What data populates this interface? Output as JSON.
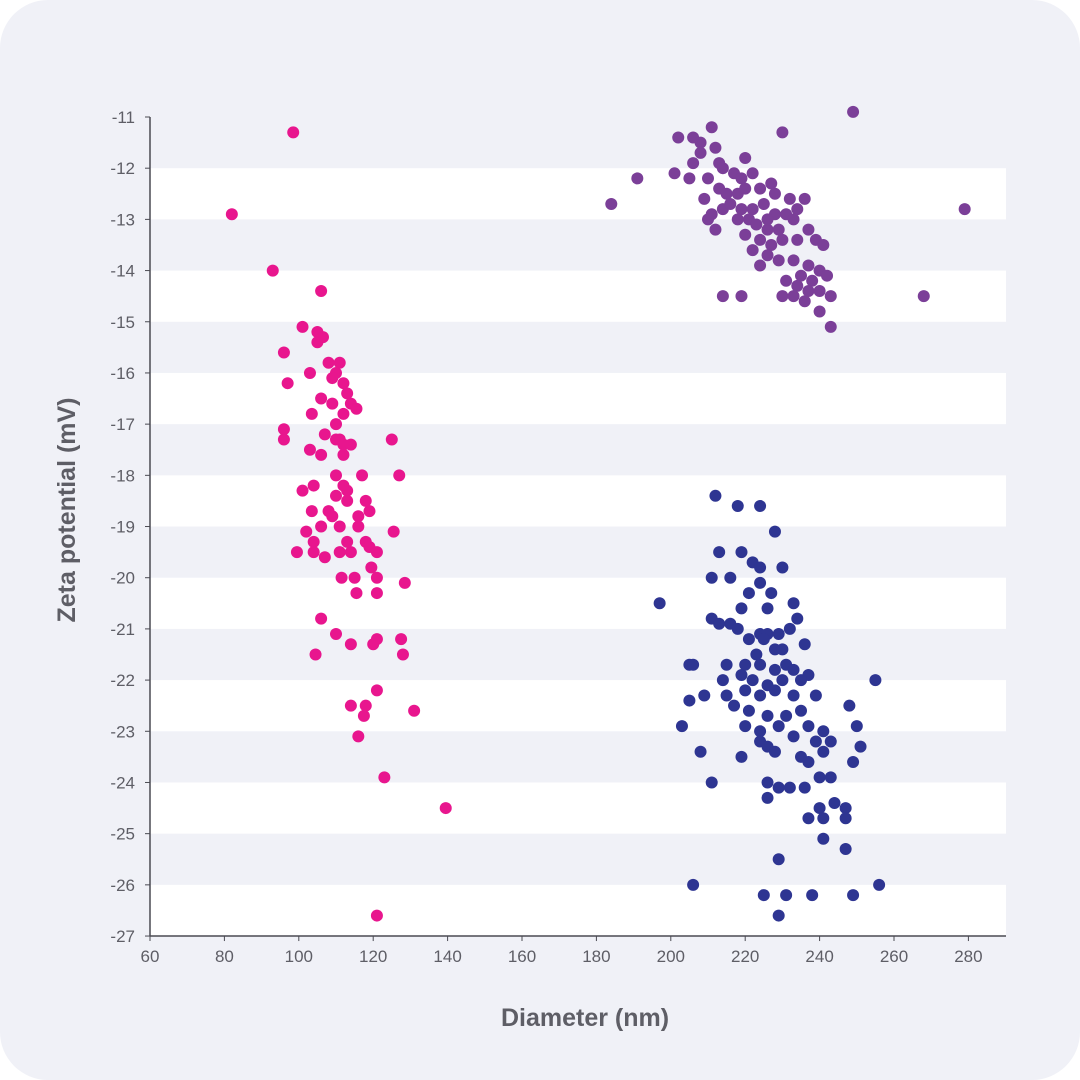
{
  "chart_data": {
    "type": "scatter",
    "title": "",
    "xlabel": "Diameter (nm)",
    "ylabel": "Zeta potential (mV)",
    "xlim": [
      60,
      290
    ],
    "ylim": [
      -27,
      -11
    ],
    "xticks": [
      60,
      80,
      100,
      120,
      140,
      160,
      180,
      200,
      220,
      240,
      260,
      280
    ],
    "yticks": [
      -11,
      -12,
      -13,
      -14,
      -15,
      -16,
      -17,
      -18,
      -19,
      -20,
      -21,
      -22,
      -23,
      -24,
      -25,
      -26,
      -27
    ],
    "grid": "alternating horizontal bands",
    "legend": "none",
    "series": [
      {
        "color": "#e8168e",
        "points": [
          [
            98.5,
            -11.3
          ],
          [
            82,
            -12.9
          ],
          [
            93,
            -14.0
          ],
          [
            106,
            -14.4
          ],
          [
            101,
            -15.1
          ],
          [
            105,
            -15.2
          ],
          [
            105,
            -15.4
          ],
          [
            106.5,
            -15.3
          ],
          [
            96,
            -15.6
          ],
          [
            97,
            -16.2
          ],
          [
            103,
            -16.0
          ],
          [
            108,
            -15.8
          ],
          [
            111,
            -15.8
          ],
          [
            110,
            -16.0
          ],
          [
            109,
            -16.1
          ],
          [
            112,
            -16.2
          ],
          [
            103.5,
            -16.8
          ],
          [
            106,
            -16.5
          ],
          [
            113,
            -16.4
          ],
          [
            114,
            -16.6
          ],
          [
            115.5,
            -16.7
          ],
          [
            109,
            -16.6
          ],
          [
            112,
            -16.8
          ],
          [
            110,
            -17.0
          ],
          [
            96,
            -17.1
          ],
          [
            96,
            -17.3
          ],
          [
            107,
            -17.2
          ],
          [
            110,
            -17.3
          ],
          [
            111,
            -17.3
          ],
          [
            112,
            -17.4
          ],
          [
            114,
            -17.4
          ],
          [
            125,
            -17.3
          ],
          [
            103,
            -17.5
          ],
          [
            106,
            -17.6
          ],
          [
            112,
            -17.6
          ],
          [
            110,
            -18.0
          ],
          [
            101,
            -18.3
          ],
          [
            104,
            -18.2
          ],
          [
            112,
            -18.2
          ],
          [
            113,
            -18.3
          ],
          [
            117,
            -18.0
          ],
          [
            127,
            -18.0
          ],
          [
            103.5,
            -18.7
          ],
          [
            108,
            -18.7
          ],
          [
            110,
            -18.4
          ],
          [
            113,
            -18.5
          ],
          [
            118,
            -18.5
          ],
          [
            109,
            -18.8
          ],
          [
            116,
            -18.8
          ],
          [
            119,
            -18.7
          ],
          [
            106,
            -19.0
          ],
          [
            102,
            -19.1
          ],
          [
            111,
            -19.0
          ],
          [
            116,
            -19.0
          ],
          [
            125.5,
            -19.1
          ],
          [
            113,
            -19.3
          ],
          [
            118,
            -19.3
          ],
          [
            104,
            -19.3
          ],
          [
            104,
            -19.5
          ],
          [
            99.5,
            -19.5
          ],
          [
            111,
            -19.5
          ],
          [
            114,
            -19.5
          ],
          [
            119,
            -19.4
          ],
          [
            121,
            -19.5
          ],
          [
            107,
            -19.6
          ],
          [
            119.5,
            -19.8
          ],
          [
            111.5,
            -20.0
          ],
          [
            115,
            -20.0
          ],
          [
            121,
            -20.0
          ],
          [
            128.5,
            -20.1
          ],
          [
            115.5,
            -20.3
          ],
          [
            121,
            -20.3
          ],
          [
            106,
            -20.8
          ],
          [
            110,
            -21.1
          ],
          [
            114,
            -21.3
          ],
          [
            120,
            -21.3
          ],
          [
            121,
            -21.2
          ],
          [
            127.5,
            -21.2
          ],
          [
            128,
            -21.5
          ],
          [
            104.5,
            -21.5
          ],
          [
            121,
            -22.2
          ],
          [
            114,
            -22.5
          ],
          [
            118,
            -22.5
          ],
          [
            117.5,
            -22.7
          ],
          [
            131,
            -22.6
          ],
          [
            116,
            -23.1
          ],
          [
            123,
            -23.9
          ],
          [
            139.5,
            -24.5
          ],
          [
            121,
            -26.6
          ]
        ]
      },
      {
        "color": "#7b3f98",
        "points": [
          [
            249,
            -10.9
          ],
          [
            230,
            -11.3
          ],
          [
            211,
            -11.2
          ],
          [
            202,
            -11.4
          ],
          [
            208,
            -11.5
          ],
          [
            206,
            -11.4
          ],
          [
            212,
            -11.6
          ],
          [
            208,
            -11.7
          ],
          [
            213,
            -11.9
          ],
          [
            220,
            -11.8
          ],
          [
            206,
            -11.9
          ],
          [
            214,
            -12.0
          ],
          [
            217,
            -12.1
          ],
          [
            201,
            -12.1
          ],
          [
            205,
            -12.2
          ],
          [
            210,
            -12.2
          ],
          [
            219,
            -12.2
          ],
          [
            222,
            -12.1
          ],
          [
            191,
            -12.2
          ],
          [
            184,
            -12.7
          ],
          [
            213,
            -12.4
          ],
          [
            215,
            -12.5
          ],
          [
            218,
            -12.5
          ],
          [
            220,
            -12.4
          ],
          [
            224,
            -12.4
          ],
          [
            228,
            -12.5
          ],
          [
            232,
            -12.6
          ],
          [
            236,
            -12.6
          ],
          [
            209,
            -12.6
          ],
          [
            211,
            -12.9
          ],
          [
            214,
            -12.8
          ],
          [
            216,
            -12.7
          ],
          [
            219,
            -12.8
          ],
          [
            222,
            -12.8
          ],
          [
            225,
            -12.7
          ],
          [
            228,
            -12.9
          ],
          [
            231,
            -12.9
          ],
          [
            234,
            -12.8
          ],
          [
            218,
            -13.0
          ],
          [
            221,
            -13.0
          ],
          [
            223,
            -13.1
          ],
          [
            226,
            -13.2
          ],
          [
            229,
            -13.2
          ],
          [
            233,
            -13.0
          ],
          [
            237,
            -13.2
          ],
          [
            210,
            -13.0
          ],
          [
            212,
            -13.2
          ],
          [
            220,
            -13.3
          ],
          [
            224,
            -13.4
          ],
          [
            227,
            -13.5
          ],
          [
            230,
            -13.4
          ],
          [
            234,
            -13.4
          ],
          [
            239,
            -13.4
          ],
          [
            241,
            -13.5
          ],
          [
            222,
            -13.6
          ],
          [
            226,
            -13.7
          ],
          [
            229,
            -13.8
          ],
          [
            233,
            -13.8
          ],
          [
            237,
            -13.9
          ],
          [
            240,
            -14.0
          ],
          [
            242,
            -14.1
          ],
          [
            224,
            -13.9
          ],
          [
            231,
            -14.2
          ],
          [
            235,
            -14.1
          ],
          [
            238,
            -14.2
          ],
          [
            234,
            -14.3
          ],
          [
            237,
            -14.4
          ],
          [
            240,
            -14.4
          ],
          [
            230,
            -14.5
          ],
          [
            233,
            -14.5
          ],
          [
            214,
            -14.5
          ],
          [
            219,
            -14.5
          ],
          [
            243,
            -14.5
          ],
          [
            236,
            -14.6
          ],
          [
            240,
            -14.8
          ],
          [
            243,
            -15.1
          ],
          [
            268,
            -14.5
          ],
          [
            279,
            -12.8
          ],
          [
            226,
            -13.0
          ],
          [
            227,
            -12.3
          ]
        ]
      },
      {
        "color": "#2e3592",
        "points": [
          [
            212,
            -18.4
          ],
          [
            224,
            -18.6
          ],
          [
            218,
            -18.6
          ],
          [
            228,
            -19.1
          ],
          [
            213,
            -19.5
          ],
          [
            219,
            -19.5
          ],
          [
            222,
            -19.7
          ],
          [
            224,
            -19.8
          ],
          [
            230,
            -19.8
          ],
          [
            211,
            -20.0
          ],
          [
            216,
            -20.0
          ],
          [
            224,
            -20.1
          ],
          [
            221,
            -20.3
          ],
          [
            227,
            -20.3
          ],
          [
            233,
            -20.5
          ],
          [
            197,
            -20.5
          ],
          [
            219,
            -20.6
          ],
          [
            226,
            -20.6
          ],
          [
            211,
            -20.8
          ],
          [
            213,
            -20.9
          ],
          [
            216,
            -20.9
          ],
          [
            218,
            -21.0
          ],
          [
            224,
            -21.1
          ],
          [
            226,
            -21.1
          ],
          [
            229,
            -21.1
          ],
          [
            232,
            -21.0
          ],
          [
            234,
            -20.8
          ],
          [
            221,
            -21.2
          ],
          [
            225,
            -21.2
          ],
          [
            236,
            -21.3
          ],
          [
            228,
            -21.4
          ],
          [
            230,
            -21.4
          ],
          [
            223,
            -21.5
          ],
          [
            205,
            -21.7
          ],
          [
            206,
            -21.7
          ],
          [
            215,
            -21.7
          ],
          [
            220,
            -21.7
          ],
          [
            224,
            -21.7
          ],
          [
            228,
            -21.8
          ],
          [
            231,
            -21.7
          ],
          [
            233,
            -21.8
          ],
          [
            237,
            -21.9
          ],
          [
            214,
            -22.0
          ],
          [
            219,
            -21.9
          ],
          [
            222,
            -22.0
          ],
          [
            226,
            -22.1
          ],
          [
            230,
            -22.0
          ],
          [
            235,
            -22.0
          ],
          [
            209,
            -22.3
          ],
          [
            215,
            -22.3
          ],
          [
            220,
            -22.2
          ],
          [
            224,
            -22.3
          ],
          [
            228,
            -22.2
          ],
          [
            233,
            -22.3
          ],
          [
            239,
            -22.3
          ],
          [
            255,
            -22.0
          ],
          [
            205,
            -22.4
          ],
          [
            217,
            -22.5
          ],
          [
            221,
            -22.6
          ],
          [
            226,
            -22.7
          ],
          [
            231,
            -22.7
          ],
          [
            235,
            -22.6
          ],
          [
            248,
            -22.5
          ],
          [
            203,
            -22.9
          ],
          [
            220,
            -22.9
          ],
          [
            224,
            -23.0
          ],
          [
            229,
            -22.9
          ],
          [
            237,
            -22.9
          ],
          [
            241,
            -23.0
          ],
          [
            250,
            -22.9
          ],
          [
            224,
            -23.2
          ],
          [
            226,
            -23.3
          ],
          [
            233,
            -23.1
          ],
          [
            239,
            -23.2
          ],
          [
            243,
            -23.2
          ],
          [
            251,
            -23.3
          ],
          [
            208,
            -23.4
          ],
          [
            219,
            -23.5
          ],
          [
            228,
            -23.4
          ],
          [
            235,
            -23.5
          ],
          [
            241,
            -23.4
          ],
          [
            249,
            -23.6
          ],
          [
            237,
            -23.6
          ],
          [
            211,
            -24.0
          ],
          [
            226,
            -24.0
          ],
          [
            229,
            -24.1
          ],
          [
            232,
            -24.1
          ],
          [
            236,
            -24.1
          ],
          [
            240,
            -23.9
          ],
          [
            243,
            -23.9
          ],
          [
            226,
            -24.3
          ],
          [
            244,
            -24.4
          ],
          [
            247,
            -24.5
          ],
          [
            240,
            -24.5
          ],
          [
            237,
            -24.7
          ],
          [
            241,
            -24.7
          ],
          [
            247,
            -24.7
          ],
          [
            241,
            -25.1
          ],
          [
            247,
            -25.3
          ],
          [
            229,
            -25.5
          ],
          [
            206,
            -26.0
          ],
          [
            256,
            -26.0
          ],
          [
            225,
            -26.2
          ],
          [
            231,
            -26.2
          ],
          [
            238,
            -26.2
          ],
          [
            249,
            -26.2
          ],
          [
            229,
            -26.6
          ]
        ]
      }
    ]
  }
}
